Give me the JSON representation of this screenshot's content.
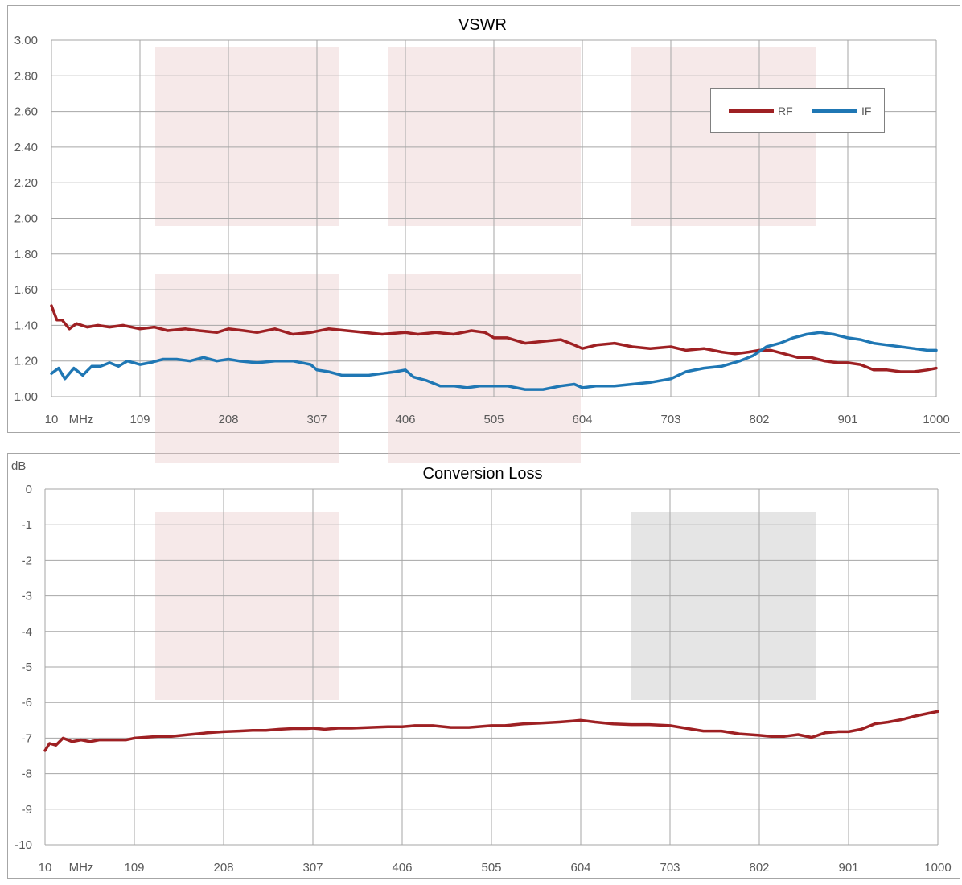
{
  "chart_data": [
    {
      "type": "line",
      "title": "VSWR",
      "ylabel": "",
      "xunit": "MHz",
      "xlim": [
        10,
        1000
      ],
      "ylim": [
        1.0,
        3.0
      ],
      "x_ticks": [
        "10",
        "109",
        "208",
        "307",
        "406",
        "505",
        "604",
        "703",
        "802",
        "901",
        "1000"
      ],
      "y_ticks": [
        "1.00",
        "1.20",
        "1.40",
        "1.60",
        "1.80",
        "2.00",
        "2.20",
        "2.40",
        "2.60",
        "2.80",
        "3.00"
      ],
      "grid": true,
      "legend": "top-right",
      "series": [
        {
          "name": "RF",
          "color": "#9e2023",
          "points": [
            [
              10,
              1.51
            ],
            [
              16,
              1.43
            ],
            [
              22,
              1.43
            ],
            [
              30,
              1.38
            ],
            [
              38,
              1.41
            ],
            [
              50,
              1.39
            ],
            [
              62,
              1.4
            ],
            [
              75,
              1.39
            ],
            [
              90,
              1.4
            ],
            [
              109,
              1.38
            ],
            [
              125,
              1.39
            ],
            [
              140,
              1.37
            ],
            [
              160,
              1.38
            ],
            [
              175,
              1.37
            ],
            [
              195,
              1.36
            ],
            [
              208,
              1.38
            ],
            [
              225,
              1.37
            ],
            [
              240,
              1.36
            ],
            [
              260,
              1.38
            ],
            [
              280,
              1.35
            ],
            [
              300,
              1.36
            ],
            [
              320,
              1.38
            ],
            [
              340,
              1.37
            ],
            [
              360,
              1.36
            ],
            [
              380,
              1.35
            ],
            [
              406,
              1.36
            ],
            [
              420,
              1.35
            ],
            [
              440,
              1.36
            ],
            [
              460,
              1.35
            ],
            [
              480,
              1.37
            ],
            [
              495,
              1.36
            ],
            [
              505,
              1.33
            ],
            [
              520,
              1.33
            ],
            [
              540,
              1.3
            ],
            [
              560,
              1.31
            ],
            [
              580,
              1.32
            ],
            [
              595,
              1.29
            ],
            [
              604,
              1.27
            ],
            [
              620,
              1.29
            ],
            [
              640,
              1.3
            ],
            [
              660,
              1.28
            ],
            [
              680,
              1.27
            ],
            [
              703,
              1.28
            ],
            [
              720,
              1.26
            ],
            [
              740,
              1.27
            ],
            [
              760,
              1.25
            ],
            [
              775,
              1.24
            ],
            [
              790,
              1.25
            ],
            [
              802,
              1.26
            ],
            [
              815,
              1.26
            ],
            [
              830,
              1.24
            ],
            [
              845,
              1.22
            ],
            [
              860,
              1.22
            ],
            [
              875,
              1.2
            ],
            [
              890,
              1.19
            ],
            [
              901,
              1.19
            ],
            [
              915,
              1.18
            ],
            [
              930,
              1.15
            ],
            [
              945,
              1.15
            ],
            [
              960,
              1.14
            ],
            [
              975,
              1.14
            ],
            [
              990,
              1.15
            ],
            [
              1000,
              1.16
            ]
          ]
        },
        {
          "name": "IF",
          "color": "#1f77b4",
          "points": [
            [
              10,
              1.13
            ],
            [
              18,
              1.16
            ],
            [
              25,
              1.1
            ],
            [
              35,
              1.16
            ],
            [
              45,
              1.12
            ],
            [
              55,
              1.17
            ],
            [
              65,
              1.17
            ],
            [
              75,
              1.19
            ],
            [
              85,
              1.17
            ],
            [
              95,
              1.2
            ],
            [
              109,
              1.18
            ],
            [
              120,
              1.19
            ],
            [
              135,
              1.21
            ],
            [
              150,
              1.21
            ],
            [
              165,
              1.2
            ],
            [
              180,
              1.22
            ],
            [
              195,
              1.2
            ],
            [
              208,
              1.21
            ],
            [
              220,
              1.2
            ],
            [
              240,
              1.19
            ],
            [
              260,
              1.2
            ],
            [
              280,
              1.2
            ],
            [
              300,
              1.18
            ],
            [
              307,
              1.15
            ],
            [
              320,
              1.14
            ],
            [
              335,
              1.12
            ],
            [
              350,
              1.12
            ],
            [
              365,
              1.12
            ],
            [
              380,
              1.13
            ],
            [
              395,
              1.14
            ],
            [
              406,
              1.15
            ],
            [
              415,
              1.11
            ],
            [
              430,
              1.09
            ],
            [
              445,
              1.06
            ],
            [
              460,
              1.06
            ],
            [
              475,
              1.05
            ],
            [
              490,
              1.06
            ],
            [
              505,
              1.06
            ],
            [
              520,
              1.06
            ],
            [
              540,
              1.04
            ],
            [
              560,
              1.04
            ],
            [
              580,
              1.06
            ],
            [
              595,
              1.07
            ],
            [
              604,
              1.05
            ],
            [
              620,
              1.06
            ],
            [
              640,
              1.06
            ],
            [
              660,
              1.07
            ],
            [
              680,
              1.08
            ],
            [
              703,
              1.1
            ],
            [
              720,
              1.14
            ],
            [
              740,
              1.16
            ],
            [
              760,
              1.17
            ],
            [
              780,
              1.2
            ],
            [
              795,
              1.23
            ],
            [
              810,
              1.28
            ],
            [
              825,
              1.3
            ],
            [
              840,
              1.33
            ],
            [
              855,
              1.35
            ],
            [
              870,
              1.36
            ],
            [
              885,
              1.35
            ],
            [
              901,
              1.33
            ],
            [
              915,
              1.32
            ],
            [
              930,
              1.3
            ],
            [
              945,
              1.29
            ],
            [
              960,
              1.28
            ],
            [
              975,
              1.27
            ],
            [
              990,
              1.26
            ],
            [
              1000,
              1.26
            ]
          ]
        }
      ]
    },
    {
      "type": "line",
      "title": "Conversion Loss",
      "ylabel": "dB",
      "xunit": "MHz",
      "xlim": [
        10,
        1000
      ],
      "ylim": [
        -10,
        0
      ],
      "x_ticks": [
        "10",
        "109",
        "208",
        "307",
        "406",
        "505",
        "604",
        "703",
        "802",
        "901",
        "1000"
      ],
      "y_ticks": [
        "-10",
        "-9",
        "-8",
        "-7",
        "-6",
        "-5",
        "-4",
        "-3",
        "-2",
        "-1",
        "0"
      ],
      "grid": true,
      "series": [
        {
          "color": "#9e2023",
          "points": [
            [
              10,
              -7.35
            ],
            [
              15,
              -7.15
            ],
            [
              22,
              -7.2
            ],
            [
              30,
              -7.0
            ],
            [
              40,
              -7.1
            ],
            [
              50,
              -7.05
            ],
            [
              60,
              -7.1
            ],
            [
              70,
              -7.05
            ],
            [
              85,
              -7.05
            ],
            [
              100,
              -7.05
            ],
            [
              109,
              -7.0
            ],
            [
              120,
              -6.98
            ],
            [
              135,
              -6.95
            ],
            [
              150,
              -6.95
            ],
            [
              170,
              -6.9
            ],
            [
              190,
              -6.85
            ],
            [
              208,
              -6.82
            ],
            [
              225,
              -6.8
            ],
            [
              240,
              -6.78
            ],
            [
              255,
              -6.78
            ],
            [
              270,
              -6.75
            ],
            [
              285,
              -6.73
            ],
            [
              300,
              -6.73
            ],
            [
              307,
              -6.72
            ],
            [
              320,
              -6.75
            ],
            [
              335,
              -6.72
            ],
            [
              350,
              -6.72
            ],
            [
              370,
              -6.7
            ],
            [
              390,
              -6.68
            ],
            [
              406,
              -6.68
            ],
            [
              420,
              -6.65
            ],
            [
              440,
              -6.65
            ],
            [
              460,
              -6.7
            ],
            [
              480,
              -6.7
            ],
            [
              505,
              -6.65
            ],
            [
              520,
              -6.65
            ],
            [
              540,
              -6.6
            ],
            [
              560,
              -6.58
            ],
            [
              580,
              -6.55
            ],
            [
              595,
              -6.52
            ],
            [
              604,
              -6.5
            ],
            [
              620,
              -6.55
            ],
            [
              640,
              -6.6
            ],
            [
              660,
              -6.62
            ],
            [
              680,
              -6.62
            ],
            [
              703,
              -6.65
            ],
            [
              720,
              -6.72
            ],
            [
              740,
              -6.8
            ],
            [
              760,
              -6.8
            ],
            [
              780,
              -6.88
            ],
            [
              802,
              -6.92
            ],
            [
              815,
              -6.95
            ],
            [
              830,
              -6.95
            ],
            [
              845,
              -6.9
            ],
            [
              860,
              -6.98
            ],
            [
              875,
              -6.85
            ],
            [
              890,
              -6.82
            ],
            [
              901,
              -6.82
            ],
            [
              915,
              -6.75
            ],
            [
              930,
              -6.6
            ],
            [
              945,
              -6.55
            ],
            [
              960,
              -6.48
            ],
            [
              975,
              -6.38
            ],
            [
              990,
              -6.3
            ],
            [
              1000,
              -6.25
            ]
          ]
        }
      ]
    }
  ]
}
